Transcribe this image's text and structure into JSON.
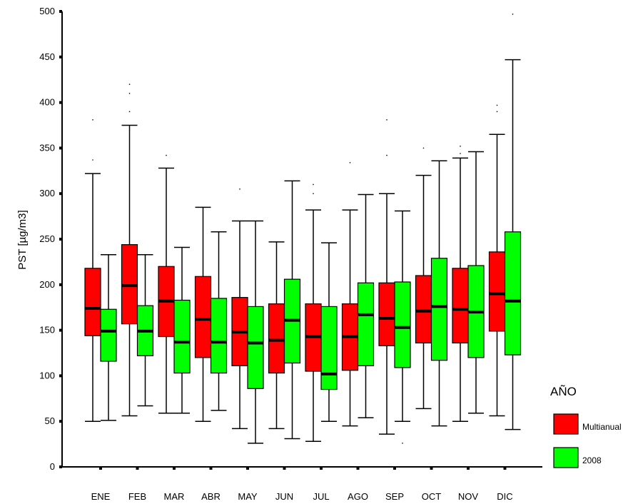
{
  "chart_data": {
    "type": "boxplot",
    "ylabel": "PST [µg/m3]",
    "xlabel": "",
    "ylim": [
      0,
      500
    ],
    "y_ticks": [
      "0",
      "50",
      "100",
      "150",
      "200",
      "250",
      "300",
      "350",
      "400",
      "450",
      "500"
    ],
    "categories": [
      "ENE",
      "FEB",
      "MAR",
      "ABR",
      "MAY",
      "JUN",
      "JUL",
      "AGO",
      "SEP",
      "OCT",
      "NOV",
      "DIC"
    ],
    "legend": {
      "title": "AÑO",
      "placement": "right"
    },
    "grid": false,
    "series": [
      {
        "name": "Multianual",
        "color": "#ff0000",
        "boxes": [
          {
            "min": 50,
            "q1": 144,
            "median": 174,
            "q3": 218,
            "max": 322
          },
          {
            "min": 56,
            "q1": 157,
            "median": 199,
            "q3": 244,
            "max": 375
          },
          {
            "min": 59,
            "q1": 143,
            "median": 182,
            "q3": 220,
            "max": 328
          },
          {
            "min": 50,
            "q1": 120,
            "median": 162,
            "q3": 209,
            "max": 285
          },
          {
            "min": 42,
            "q1": 111,
            "median": 148,
            "q3": 186,
            "max": 270
          },
          {
            "min": 42,
            "q1": 103,
            "median": 139,
            "q3": 179,
            "max": 247
          },
          {
            "min": 28,
            "q1": 105,
            "median": 143,
            "q3": 179,
            "max": 282
          },
          {
            "min": 45,
            "q1": 106,
            "median": 143,
            "q3": 179,
            "max": 282
          },
          {
            "min": 36,
            "q1": 133,
            "median": 163,
            "q3": 202,
            "max": 300
          },
          {
            "min": 64,
            "q1": 136,
            "median": 171,
            "q3": 210,
            "max": 320
          },
          {
            "min": 50,
            "q1": 136,
            "median": 173,
            "q3": 218,
            "max": 339
          },
          {
            "min": 56,
            "q1": 149,
            "median": 190,
            "q3": 236,
            "max": 365
          }
        ],
        "outliers": [
          [
            381,
            337
          ],
          [
            420,
            410,
            390
          ],
          [
            342
          ],
          [],
          [
            305
          ],
          [],
          [
            310,
            300
          ],
          [
            334
          ],
          [
            381,
            342
          ],
          [
            350
          ],
          [
            352,
            344
          ],
          [
            397,
            390
          ]
        ]
      },
      {
        "name": "2008",
        "color": "#00ff00",
        "boxes": [
          {
            "min": 51,
            "q1": 116,
            "median": 149,
            "q3": 173,
            "max": 233
          },
          {
            "min": 67,
            "q1": 122,
            "median": 149,
            "q3": 177,
            "max": 233
          },
          {
            "min": 59,
            "q1": 103,
            "median": 137,
            "q3": 183,
            "max": 241
          },
          {
            "min": 62,
            "q1": 103,
            "median": 137,
            "q3": 185,
            "max": 258
          },
          {
            "min": 26,
            "q1": 86,
            "median": 136,
            "q3": 176,
            "max": 270
          },
          {
            "min": 31,
            "q1": 114,
            "median": 161,
            "q3": 206,
            "max": 314
          },
          {
            "min": 50,
            "q1": 85,
            "median": 102,
            "q3": 176,
            "max": 246
          },
          {
            "min": 54,
            "q1": 111,
            "median": 167,
            "q3": 202,
            "max": 299
          },
          {
            "min": 50,
            "q1": 109,
            "median": 153,
            "q3": 203,
            "max": 281
          },
          {
            "min": 45,
            "q1": 117,
            "median": 176,
            "q3": 229,
            "max": 336
          },
          {
            "min": 59,
            "q1": 120,
            "median": 170,
            "q3": 221,
            "max": 346
          },
          {
            "min": 41,
            "q1": 123,
            "median": 182,
            "q3": 258,
            "max": 447
          }
        ],
        "outliers": [
          [],
          [],
          [],
          [],
          [],
          [],
          [],
          [],
          [
            26
          ],
          [],
          [],
          [
            497
          ]
        ]
      }
    ]
  }
}
